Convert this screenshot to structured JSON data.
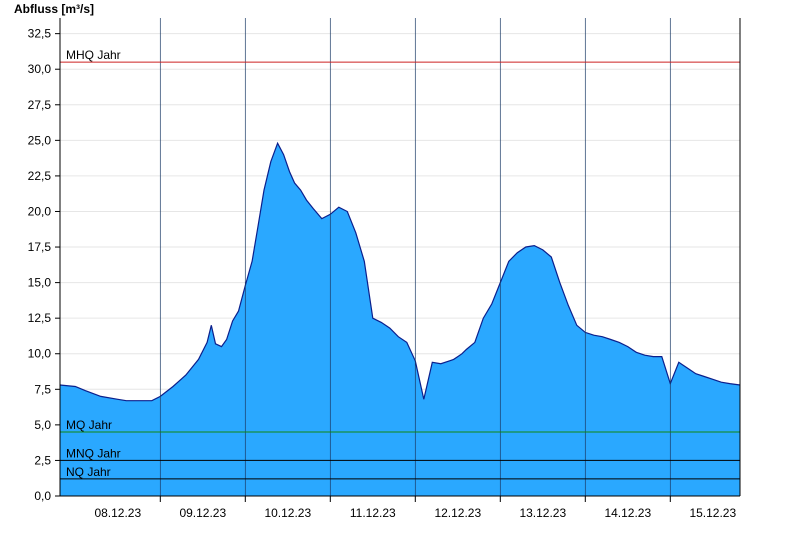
{
  "chart_data": {
    "type": "area",
    "ylabel": "Abfluss [m³/s]",
    "ylim": [
      0,
      33.6
    ],
    "y_ticks": [
      "0,0",
      "2,5",
      "5,0",
      "7,5",
      "10,0",
      "12,5",
      "15,0",
      "17,5",
      "20,0",
      "22,5",
      "25,0",
      "27,5",
      "30,0",
      "32,5"
    ],
    "y_tick_values": [
      0,
      2.5,
      5,
      7.5,
      10,
      12.5,
      15,
      17.5,
      20,
      22.5,
      25,
      27.5,
      30,
      32.5
    ],
    "xlim": [
      -0.18,
      7.82
    ],
    "x_tick_labels": [
      "08.12.23",
      "09.12.23",
      "10.12.23",
      "11.12.23",
      "12.12.23",
      "13.12.23",
      "14.12.23",
      "15.12.23"
    ],
    "x_label_positions": [
      0.5,
      1.5,
      2.5,
      3.5,
      4.5,
      5.5,
      6.5,
      7.5
    ],
    "x_day_boundaries": [
      1,
      2,
      3,
      4,
      5,
      6,
      7
    ],
    "grid": true,
    "colors": {
      "fill": "#2aa8ff",
      "line": "#0b1f8c",
      "mhq": "#cc2222",
      "mq": "#118811",
      "mnq": "#000000",
      "nq": "#000000"
    },
    "reference_lines": [
      {
        "name": "MHQ Jahr",
        "value": 30.5
      },
      {
        "name": "MQ Jahr",
        "value": 4.5
      },
      {
        "name": "MNQ Jahr",
        "value": 2.5
      },
      {
        "name": "NQ Jahr",
        "value": 1.2
      }
    ],
    "series": [
      {
        "x": [
          -0.18,
          0.0,
          0.12,
          0.3,
          0.5,
          0.6,
          0.75,
          0.9,
          1.0,
          1.15,
          1.3,
          1.45,
          1.55,
          1.6,
          1.65,
          1.72,
          1.78,
          1.85,
          1.92,
          2.0,
          2.08,
          2.15,
          2.22,
          2.3,
          2.38,
          2.45,
          2.52,
          2.58,
          2.65,
          2.72,
          2.8,
          2.9,
          3.0,
          3.1,
          3.2,
          3.3,
          3.4,
          3.5,
          3.6,
          3.7,
          3.8,
          3.9,
          4.0,
          4.1,
          4.2,
          4.3,
          4.4,
          4.45,
          4.5,
          4.55,
          4.6,
          4.7,
          4.8,
          4.9,
          5.0,
          5.1,
          5.2,
          5.3,
          5.4,
          5.5,
          5.6,
          5.7,
          5.8,
          5.9,
          6.0,
          6.1,
          6.2,
          6.3,
          6.4,
          6.5,
          6.6,
          6.7,
          6.8,
          6.9,
          7.0,
          7.1,
          7.15,
          7.2,
          7.3,
          7.4,
          7.5,
          7.6,
          7.7,
          7.82
        ],
        "values": [
          7.8,
          7.7,
          7.4,
          7.0,
          6.8,
          6.7,
          6.7,
          6.7,
          7.0,
          7.7,
          8.5,
          9.6,
          10.8,
          12.0,
          10.7,
          10.5,
          11.0,
          12.3,
          13.0,
          14.8,
          16.5,
          19.0,
          21.5,
          23.5,
          24.8,
          24.0,
          22.8,
          22.0,
          21.5,
          20.8,
          20.2,
          19.5,
          19.8,
          20.3,
          20.0,
          18.5,
          16.5,
          12.5,
          12.2,
          11.8,
          11.2,
          10.8,
          9.5,
          6.8,
          9.4,
          9.3,
          9.5,
          9.6,
          9.8,
          10.0,
          10.3,
          10.8,
          12.5,
          13.5,
          15.0,
          16.5,
          17.1,
          17.5,
          17.6,
          17.3,
          16.8,
          15.0,
          13.4,
          12.0,
          11.5,
          11.3,
          11.2,
          11.0,
          10.8,
          10.5,
          10.1,
          9.9,
          9.8,
          9.8,
          7.9,
          9.4,
          9.2,
          9.0,
          8.6,
          8.4,
          8.2,
          8.0,
          7.9,
          7.8
        ]
      }
    ]
  }
}
